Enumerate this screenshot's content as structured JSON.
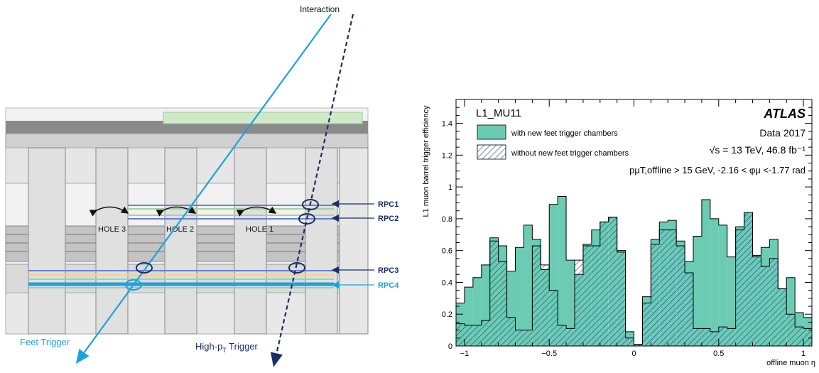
{
  "diagram": {
    "interaction_label": "Interaction",
    "feet_trigger_label": "Feet Trigger",
    "highpt_trigger_label": {
      "main": "High-p",
      "sub": "T",
      "suffix": " Trigger"
    },
    "hole_labels": [
      "HOLE 3",
      "HOLE 2",
      "HOLE 1"
    ],
    "rpc_labels": [
      "RPC1",
      "RPC2",
      "RPC3",
      "RPC4"
    ],
    "colors": {
      "feet": "#1aa3dc",
      "highpt": "#1a2f66",
      "rpc4": "#1aa3dc"
    }
  },
  "chart_data": {
    "type": "histogram",
    "corner_label": "L1_MU11",
    "atlas_label": "ATLAS",
    "info_lines": [
      "Data 2017",
      "√s = 13 TeV, 46.8 fb⁻¹",
      "pμT,offline > 15 GeV, -2.16 < φμ <-1.77 rad"
    ],
    "ylabel": "L1 muon barrel trigger efficiency",
    "xlabel": "offline muon η",
    "xlim": [
      -1.05,
      1.05
    ],
    "ylim": [
      0,
      1.55
    ],
    "xticks": [
      "−1",
      "−0.5",
      "0",
      "0.5",
      "1"
    ],
    "xtick_values": [
      -1,
      -0.5,
      0,
      0.5,
      1
    ],
    "yticks": [
      "0",
      "0.2",
      "0.4",
      "0.6",
      "0.8",
      "1",
      "1.2",
      "1.4"
    ],
    "ytick_values": [
      0,
      0.2,
      0.4,
      0.6,
      0.8,
      1.0,
      1.2,
      1.4
    ],
    "bin_edges": [
      -1.05,
      -1.0,
      -0.95,
      -0.9,
      -0.85,
      -0.8,
      -0.75,
      -0.7,
      -0.65,
      -0.6,
      -0.55,
      -0.5,
      -0.45,
      -0.4,
      -0.35,
      -0.3,
      -0.25,
      -0.2,
      -0.15,
      -0.1,
      -0.05,
      0.0,
      0.05,
      0.1,
      0.15,
      0.2,
      0.25,
      0.3,
      0.35,
      0.4,
      0.45,
      0.5,
      0.55,
      0.6,
      0.65,
      0.7,
      0.75,
      0.8,
      0.85,
      0.9,
      0.95,
      1.0,
      1.05
    ],
    "series": [
      {
        "name": "with new feet trigger chambers",
        "color": "#6bcbb3",
        "values": [
          0.27,
          0.37,
          0.43,
          0.51,
          0.68,
          0.63,
          0.47,
          0.62,
          0.76,
          0.67,
          0.48,
          0.89,
          0.94,
          0.54,
          0.45,
          0.64,
          0.73,
          0.78,
          0.81,
          0.6,
          0.09,
          0.01,
          0.31,
          0.67,
          0.78,
          0.79,
          0.66,
          0.53,
          0.69,
          0.92,
          0.8,
          0.76,
          0.56,
          0.75,
          0.84,
          0.57,
          0.62,
          0.67,
          0.36,
          0.43,
          0.21,
          0.18
        ]
      },
      {
        "name": "without new feet trigger chambers",
        "color": "#1a4a8a",
        "values": [
          0.14,
          0.13,
          0.13,
          0.16,
          0.66,
          0.53,
          0.18,
          0.1,
          0.1,
          0.63,
          0.51,
          0.35,
          0.13,
          0.11,
          0.54,
          0.63,
          0.63,
          0.78,
          0.81,
          0.59,
          0.05,
          0.01,
          0.27,
          0.64,
          0.73,
          0.73,
          0.63,
          0.46,
          0.11,
          0.11,
          0.09,
          0.12,
          0.11,
          0.73,
          0.84,
          0.56,
          0.5,
          0.55,
          0.36,
          0.2,
          0.12,
          0.11
        ]
      }
    ]
  }
}
